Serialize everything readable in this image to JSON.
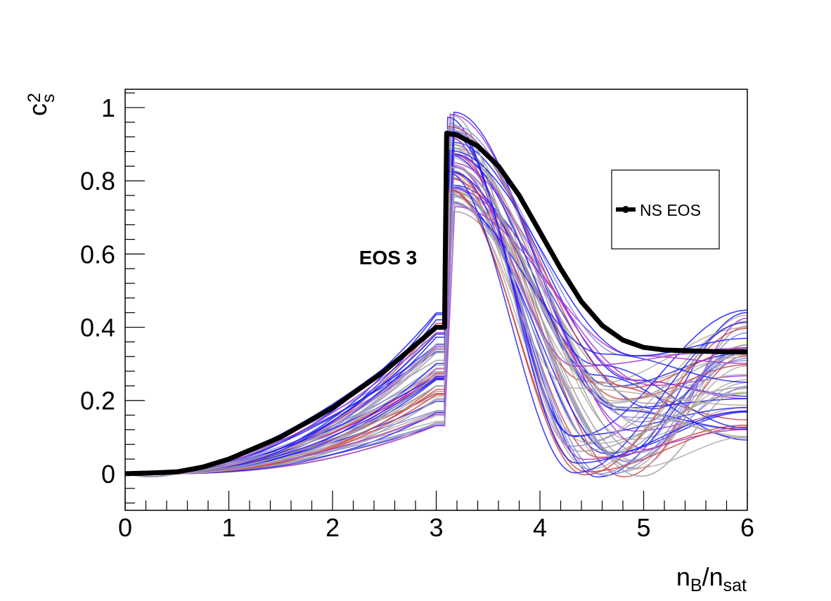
{
  "chart_data": {
    "type": "line",
    "xlabel": {
      "main": "n",
      "sub1": "B",
      "mid": "/n",
      "sub2": "sat"
    },
    "ylabel": {
      "main": "c",
      "sup": "2",
      "sub": "s"
    },
    "xlim": [
      0,
      6
    ],
    "ylim": [
      -0.1,
      1.05
    ],
    "x_ticks": [
      0,
      1,
      2,
      3,
      4,
      5,
      6
    ],
    "x_tick_labels": [
      "0",
      "1",
      "2",
      "3",
      "4",
      "5",
      "6"
    ],
    "y_ticks": [
      0,
      0.2,
      0.4,
      0.6,
      0.8,
      1
    ],
    "y_tick_labels": [
      "0",
      "0.2",
      "0.4",
      "0.6",
      "0.8",
      "1"
    ],
    "annotation": "EOS 3",
    "legend": {
      "position": "top-right",
      "entries": [
        "NS EOS"
      ]
    },
    "main_series": {
      "name": "NS EOS",
      "color": "#000000",
      "x": [
        0,
        0.25,
        0.5,
        0.75,
        1.0,
        1.25,
        1.5,
        1.75,
        2.0,
        2.25,
        2.5,
        2.75,
        3.0,
        3.08,
        3.1,
        3.2,
        3.4,
        3.6,
        3.8,
        4.0,
        4.2,
        4.4,
        4.6,
        4.8,
        5.0,
        5.2,
        5.5,
        5.8,
        6.0
      ],
      "y": [
        0,
        0.002,
        0.005,
        0.018,
        0.04,
        0.07,
        0.1,
        0.14,
        0.18,
        0.23,
        0.28,
        0.34,
        0.4,
        0.4,
        0.93,
        0.925,
        0.895,
        0.84,
        0.76,
        0.66,
        0.56,
        0.47,
        0.405,
        0.365,
        0.345,
        0.338,
        0.335,
        0.333,
        0.333
      ]
    },
    "ensemble": {
      "description": "many sampled EOS curves (speed of sound squared)",
      "count": 60,
      "colors": [
        "#2222ee",
        "#1a1aff",
        "#9a9aa6",
        "#b0a8a8",
        "#cc4444",
        "#aa33cc",
        "#8888dd",
        "#b4a8a0"
      ],
      "x_break": 3.0,
      "x_jump": 3.08,
      "low_at_3_range": [
        0.13,
        0.44
      ],
      "peak_range": [
        0.7,
        0.99
      ],
      "min_range": [
        -0.01,
        0.33
      ],
      "x_min_range": [
        4.3,
        5.1
      ],
      "end_range": [
        0.09,
        0.45
      ]
    }
  }
}
